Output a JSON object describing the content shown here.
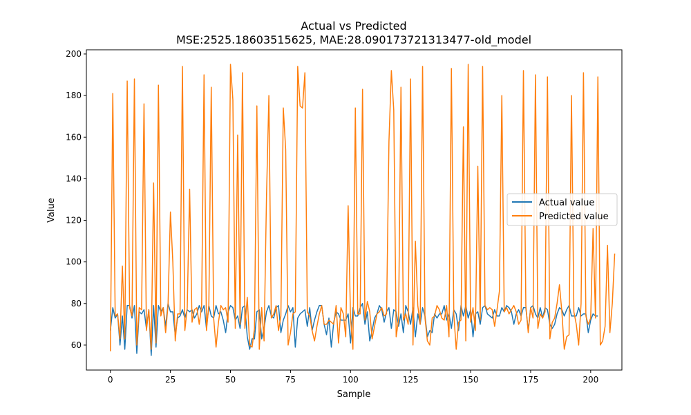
{
  "chart_data": {
    "type": "line",
    "title": "Actual vs Predicted",
    "subtitle": "MSE:2525.18603515625, MAE:28.090173721313477-old_model",
    "xlabel": "Sample",
    "ylabel": "Value",
    "xlim": [
      -10,
      213
    ],
    "ylim": [
      48,
      202
    ],
    "xticks": [
      0,
      25,
      50,
      75,
      100,
      125,
      150,
      175,
      200
    ],
    "yticks": [
      60,
      80,
      100,
      120,
      140,
      160,
      180,
      200
    ],
    "grid": false,
    "legend_position": "center-right",
    "series": [
      {
        "name": "Actual value",
        "color": "#1f77b4",
        "values": [
          67,
          78,
          73,
          75,
          60,
          74,
          58,
          79,
          79,
          73,
          79,
          56,
          76,
          75,
          77,
          68,
          77,
          55,
          79,
          59,
          79,
          76,
          78,
          69,
          80,
          76,
          76,
          65,
          73,
          74,
          77,
          73,
          77,
          76,
          77,
          73,
          75,
          79,
          76,
          79,
          68,
          79,
          74,
          73,
          79,
          75,
          76,
          72,
          66,
          76,
          79,
          78,
          72,
          74,
          68,
          78,
          79,
          64,
          58,
          63,
          63,
          76,
          77,
          63,
          68,
          76,
          79,
          74,
          73,
          78,
          79,
          66,
          72,
          75,
          79,
          76,
          78,
          59,
          73,
          75,
          76,
          77,
          69,
          78,
          67,
          72,
          76,
          79,
          79,
          70,
          65,
          73,
          59,
          71,
          76,
          75,
          72,
          72,
          72,
          75,
          61,
          78,
          74,
          74,
          78,
          80,
          70,
          76,
          62,
          67,
          73,
          75,
          79,
          77,
          71,
          76,
          78,
          68,
          77,
          76,
          69,
          75,
          66,
          79,
          76,
          70,
          78,
          64,
          75,
          70,
          78,
          74,
          64,
          67,
          66,
          75,
          73,
          75,
          75,
          79,
          72,
          75,
          68,
          77,
          75,
          67,
          79,
          74,
          79,
          73,
          77,
          64,
          75,
          76,
          70,
          78,
          79,
          75,
          74,
          73,
          77,
          74,
          74,
          78,
          76,
          79,
          78,
          76,
          70,
          75,
          77,
          74,
          78,
          78,
          67,
          78,
          79,
          75,
          73,
          78,
          73,
          78,
          77,
          70,
          68,
          70,
          75,
          78,
          77,
          74,
          77,
          79,
          74,
          74,
          74,
          78,
          74,
          75,
          75,
          66,
          72,
          75,
          74,
          74
        ]
      },
      {
        "name": "Predicted value",
        "color": "#ff7f0e",
        "values": [
          57,
          181,
          74,
          75,
          63,
          98,
          63,
          187,
          78,
          74,
          188,
          60,
          78,
          77,
          176,
          67,
          77,
          58,
          138,
          61,
          185,
          74,
          78,
          66,
          79,
          124,
          100,
          62,
          75,
          75,
          194,
          67,
          78,
          135,
          71,
          77,
          78,
          70,
          79,
          190,
          67,
          79,
          184,
          73,
          59,
          71,
          79,
          77,
          78,
          71,
          195,
          178,
          68,
          161,
          70,
          191,
          68,
          83,
          60,
          59,
          68,
          175,
          58,
          78,
          62,
          131,
          180,
          73,
          75,
          79,
          67,
          74,
          174,
          154,
          60,
          66,
          75,
          76,
          194,
          175,
          174,
          191,
          76,
          74,
          67,
          62,
          69,
          75,
          79,
          70,
          70,
          72,
          71,
          70,
          79,
          61,
          78,
          75,
          64,
          127,
          73,
          58,
          174,
          75,
          75,
          183,
          72,
          81,
          76,
          63,
          69,
          75,
          76,
          78,
          74,
          75,
          158,
          192,
          173,
          64,
          72,
          184,
          72,
          75,
          70,
          188,
          60,
          110,
          79,
          70,
          194,
          73,
          62,
          60,
          73,
          74,
          79,
          77,
          73,
          72,
          79,
          64,
          193,
          75,
          58,
          71,
          72,
          165,
          62,
          195,
          71,
          78,
          67,
          146,
          72,
          194,
          79,
          77,
          78,
          77,
          69,
          77,
          86,
          180,
          76,
          78,
          75,
          77,
          79,
          76,
          70,
          72,
          192,
          79,
          66,
          78,
          73,
          190,
          68,
          75,
          73,
          76,
          189,
          63,
          71,
          73,
          80,
          89,
          76,
          58,
          64,
          65,
          180,
          76,
          70,
          60,
          80,
          191,
          74,
          70,
          73,
          116,
          73,
          189,
          60,
          62,
          69,
          108,
          66,
          80,
          104
        ]
      }
    ]
  }
}
